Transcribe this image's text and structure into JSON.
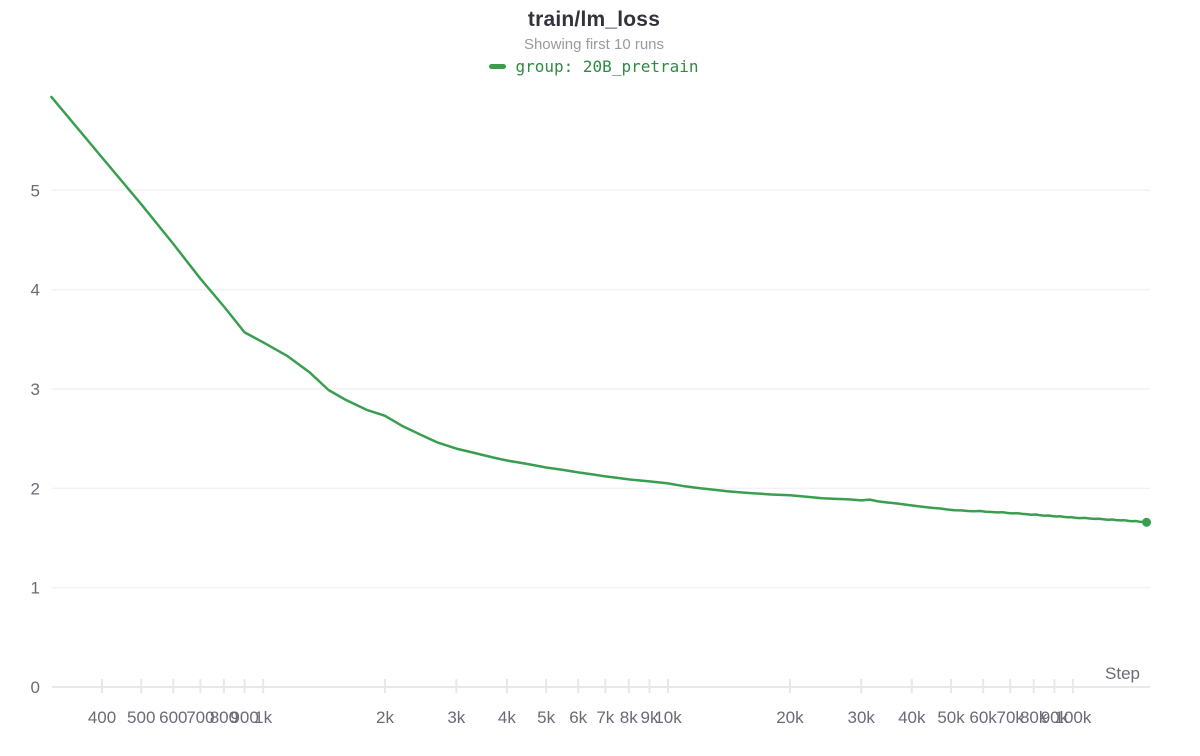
{
  "header": {
    "title": "train/lm_loss",
    "subtitle": "Showing first 10 runs",
    "legend": [
      {
        "label": "group: 20B_pretrain",
        "color": "#3a9e50",
        "text_color": "#2e8b43"
      }
    ]
  },
  "chart_data": {
    "type": "line",
    "title": "train/lm_loss",
    "subtitle": "Showing first 10 runs",
    "xlabel": "Step",
    "ylabel": "",
    "x_scale": "log",
    "xlim": [
      301,
      155000
    ],
    "ylim": [
      0,
      6.06
    ],
    "grid": "horizontal",
    "legend_position": "top-center",
    "colors": {
      "line": "#3a9e50",
      "grid": "#f2f2f2",
      "axis": "#e8e8ea",
      "tick_label": "#6b6a76"
    },
    "y_ticks": [
      {
        "v": 0,
        "label": "0"
      },
      {
        "v": 1,
        "label": "1"
      },
      {
        "v": 2,
        "label": "2"
      },
      {
        "v": 3,
        "label": "3"
      },
      {
        "v": 4,
        "label": "4"
      },
      {
        "v": 5,
        "label": "5"
      }
    ],
    "x_ticks": [
      {
        "v": 400,
        "label": "400"
      },
      {
        "v": 500,
        "label": "500"
      },
      {
        "v": 600,
        "label": "600"
      },
      {
        "v": 700,
        "label": "700"
      },
      {
        "v": 800,
        "label": "800"
      },
      {
        "v": 900,
        "label": "900"
      },
      {
        "v": 1000,
        "label": "1k"
      },
      {
        "v": 2000,
        "label": "2k"
      },
      {
        "v": 3000,
        "label": "3k"
      },
      {
        "v": 4000,
        "label": "4k"
      },
      {
        "v": 5000,
        "label": "5k"
      },
      {
        "v": 6000,
        "label": "6k"
      },
      {
        "v": 7000,
        "label": "7k"
      },
      {
        "v": 8000,
        "label": "8k"
      },
      {
        "v": 9000,
        "label": "9k"
      },
      {
        "v": 10000,
        "label": "10k"
      },
      {
        "v": 20000,
        "label": "20k"
      },
      {
        "v": 30000,
        "label": "30k"
      },
      {
        "v": 40000,
        "label": "40k"
      },
      {
        "v": 50000,
        "label": "50k"
      },
      {
        "v": 60000,
        "label": "60k"
      },
      {
        "v": 70000,
        "label": "70k"
      },
      {
        "v": 80000,
        "label": "80k"
      },
      {
        "v": 90000,
        "label": "90k"
      },
      {
        "v": 100000,
        "label": "100k"
      }
    ],
    "series": [
      {
        "name": "group: 20B_pretrain",
        "color": "#3a9e50",
        "endpoint_dot": true,
        "points": [
          [
            300,
            5.94
          ],
          [
            400,
            5.33
          ],
          [
            500,
            4.86
          ],
          [
            600,
            4.46
          ],
          [
            700,
            4.11
          ],
          [
            800,
            3.83
          ],
          [
            900,
            3.57
          ],
          [
            1000,
            3.47
          ],
          [
            1150,
            3.33
          ],
          [
            1300,
            3.17
          ],
          [
            1450,
            2.99
          ],
          [
            1600,
            2.89
          ],
          [
            1800,
            2.79
          ],
          [
            2000,
            2.73
          ],
          [
            2200,
            2.63
          ],
          [
            2450,
            2.54
          ],
          [
            2700,
            2.46
          ],
          [
            3000,
            2.4
          ],
          [
            3300,
            2.36
          ],
          [
            3700,
            2.31
          ],
          [
            4000,
            2.28
          ],
          [
            4500,
            2.245
          ],
          [
            5000,
            2.21
          ],
          [
            5500,
            2.185
          ],
          [
            6000,
            2.16
          ],
          [
            6500,
            2.14
          ],
          [
            7000,
            2.12
          ],
          [
            7500,
            2.105
          ],
          [
            8000,
            2.09
          ],
          [
            9000,
            2.07
          ],
          [
            10000,
            2.05
          ],
          [
            11000,
            2.02
          ],
          [
            12000,
            2.0
          ],
          [
            13000,
            1.985
          ],
          [
            14000,
            1.97
          ],
          [
            15000,
            1.96
          ],
          [
            16000,
            1.952
          ],
          [
            17000,
            1.945
          ],
          [
            18000,
            1.938
          ],
          [
            19000,
            1.934
          ],
          [
            20000,
            1.93
          ],
          [
            22000,
            1.915
          ],
          [
            24000,
            1.9
          ],
          [
            26000,
            1.893
          ],
          [
            28000,
            1.888
          ],
          [
            30000,
            1.878
          ],
          [
            31500,
            1.886
          ],
          [
            33000,
            1.868
          ],
          [
            35000,
            1.856
          ],
          [
            37000,
            1.846
          ],
          [
            39000,
            1.833
          ],
          [
            41000,
            1.822
          ],
          [
            43000,
            1.812
          ],
          [
            45000,
            1.803
          ],
          [
            47000,
            1.797
          ],
          [
            49000,
            1.787
          ],
          [
            51000,
            1.78
          ],
          [
            53000,
            1.778
          ],
          [
            55000,
            1.772
          ],
          [
            57000,
            1.77
          ],
          [
            59000,
            1.772
          ],
          [
            61000,
            1.764
          ],
          [
            63000,
            1.762
          ],
          [
            65000,
            1.758
          ],
          [
            67000,
            1.76
          ],
          [
            69000,
            1.752
          ],
          [
            71000,
            1.748
          ],
          [
            73000,
            1.75
          ],
          [
            75000,
            1.742
          ],
          [
            77000,
            1.738
          ],
          [
            79000,
            1.734
          ],
          [
            81000,
            1.736
          ],
          [
            83000,
            1.728
          ],
          [
            85000,
            1.724
          ],
          [
            87000,
            1.726
          ],
          [
            89000,
            1.72
          ],
          [
            91000,
            1.716
          ],
          [
            93000,
            1.718
          ],
          [
            95000,
            1.712
          ],
          [
            97000,
            1.708
          ],
          [
            99000,
            1.71
          ],
          [
            101000,
            1.704
          ],
          [
            104000,
            1.7
          ],
          [
            107000,
            1.702
          ],
          [
            110000,
            1.696
          ],
          [
            113000,
            1.692
          ],
          [
            116000,
            1.694
          ],
          [
            119000,
            1.688
          ],
          [
            122000,
            1.684
          ],
          [
            125000,
            1.686
          ],
          [
            128000,
            1.68
          ],
          [
            131000,
            1.677
          ],
          [
            134000,
            1.679
          ],
          [
            137000,
            1.672
          ],
          [
            140000,
            1.669
          ],
          [
            143000,
            1.671
          ],
          [
            146000,
            1.664
          ],
          [
            149000,
            1.662
          ],
          [
            152000,
            1.658
          ]
        ]
      }
    ]
  }
}
